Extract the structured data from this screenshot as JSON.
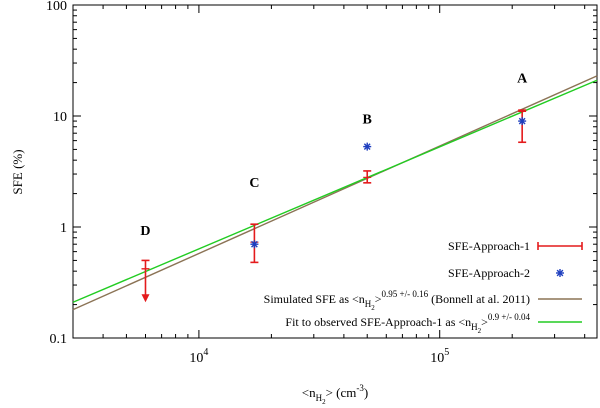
{
  "chart_data": {
    "type": "scatter",
    "title": "",
    "xlabel": {
      "main": "<n",
      "sub": "H",
      "subsub": "2",
      "rest": "> (cm",
      "sup": "-3",
      "end": ")"
    },
    "ylabel": "SFE (%)",
    "xscale": "log",
    "yscale": "log",
    "xlim": [
      3000,
      450000
    ],
    "ylim": [
      0.1,
      100
    ],
    "xticks": [
      {
        "value": 10000,
        "base": "10",
        "exp": "4"
      },
      {
        "value": 100000,
        "base": "10",
        "exp": "5"
      }
    ],
    "yticks": [
      {
        "value": 0.1,
        "label": "0.1"
      },
      {
        "value": 1,
        "label": "1"
      },
      {
        "value": 10,
        "label": "10"
      },
      {
        "value": 100,
        "label": "100"
      }
    ],
    "grid": false,
    "legend_position": "bottom-right",
    "series": [
      {
        "name": "SFE-Approach-1",
        "kind": "errorbar",
        "color": "#e41a1c",
        "points": [
          {
            "id": "D",
            "x": 6000,
            "y": 0.42,
            "yerr_low": 0.42,
            "yerr_high": 0.5,
            "upper_limit": true
          },
          {
            "id": "C",
            "x": 17000,
            "y": 0.73,
            "yerr_low": 0.48,
            "yerr_high": 1.06
          },
          {
            "id": "B",
            "x": 50000,
            "y": 2.8,
            "yerr_low": 2.5,
            "yerr_high": 3.2
          },
          {
            "id": "A",
            "x": 220000,
            "y": 11.0,
            "yerr_low": 5.8,
            "yerr_high": 11.3
          }
        ]
      },
      {
        "name": "SFE-Approach-2",
        "kind": "points",
        "color": "#1f3fbf",
        "points": [
          {
            "id": "C",
            "x": 17000,
            "y": 0.7
          },
          {
            "id": "B",
            "x": 50000,
            "y": 5.3
          },
          {
            "id": "A",
            "x": 220000,
            "y": 9.0
          }
        ]
      },
      {
        "name": "Simulated SFE as <n_H2>^0.95 +/- 0.16 (Bonnell at al. 2011)",
        "kind": "line",
        "color": "#8b7355",
        "x": [
          3000,
          450000
        ],
        "y": [
          0.18,
          23
        ]
      },
      {
        "name": "Fit to observed SFE-Approach-1 as <n_H2>^0.9 +/- 0.04",
        "kind": "line",
        "color": "#22cc22",
        "x": [
          3000,
          450000
        ],
        "y": [
          0.21,
          21
        ]
      }
    ],
    "point_labels": [
      {
        "text": "D",
        "x": 6000,
        "y": 0.85
      },
      {
        "text": "C",
        "x": 17000,
        "y": 2.3
      },
      {
        "text": "B",
        "x": 50000,
        "y": 8.6
      },
      {
        "text": "A",
        "x": 220000,
        "y": 20
      }
    ],
    "legend": [
      {
        "parts": [
          {
            "t": "SFE-Approach-1"
          }
        ]
      },
      {
        "parts": [
          {
            "t": "SFE-Approach-2"
          }
        ]
      },
      {
        "parts": [
          {
            "t": "Simulated SFE as <n"
          },
          {
            "t": "H",
            "sub": true
          },
          {
            "t": "2",
            "subsub": true
          },
          {
            "t": ">"
          },
          {
            "t": "0.95 +/- 0.16",
            "sup": true
          },
          {
            "t": " (Bonnell at al. 2011)"
          }
        ]
      },
      {
        "parts": [
          {
            "t": "Fit to observed SFE-Approach-1 as <n"
          },
          {
            "t": "H",
            "sub": true
          },
          {
            "t": "2",
            "subsub": true
          },
          {
            "t": ">"
          },
          {
            "t": "0.9 +/- 0.04",
            "sup": true
          }
        ]
      }
    ]
  }
}
